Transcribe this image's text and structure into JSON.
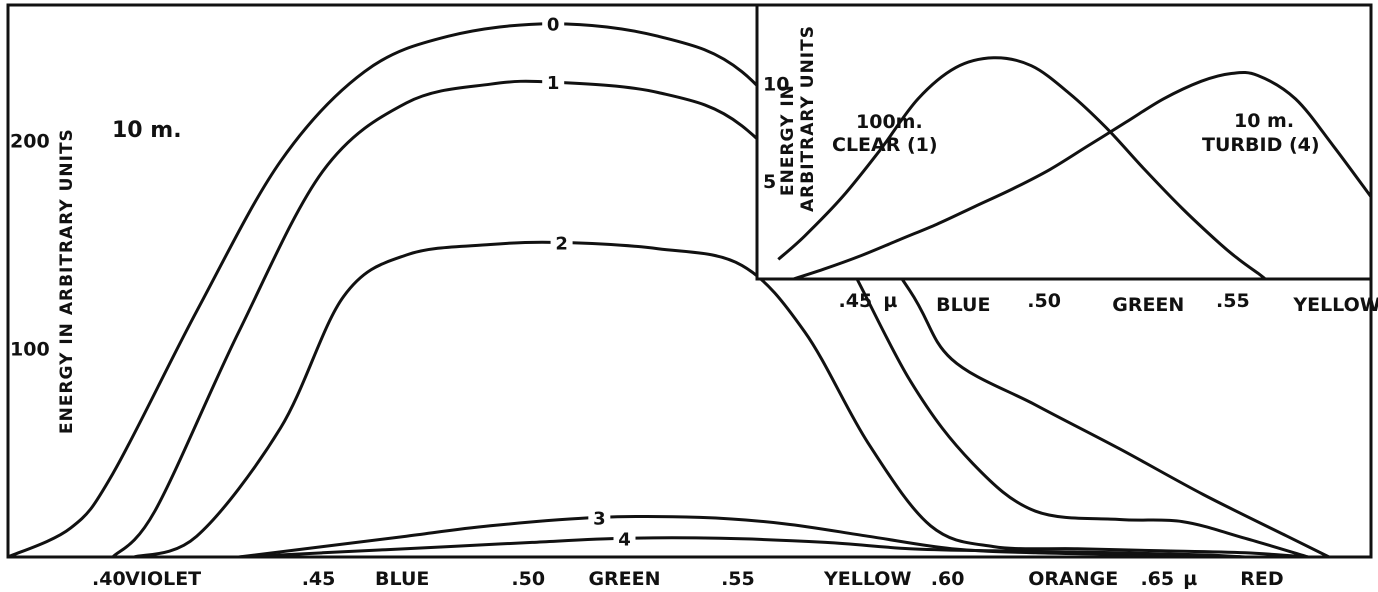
{
  "chart_data": [
    {
      "type": "line",
      "annotation": "10 m.",
      "ylabel": "ENERGY IN ARBITRARY UNITS",
      "xunit": "µ",
      "xlim": [
        0.375,
        0.7
      ],
      "ylim": [
        0,
        265
      ],
      "x_ticks": [
        {
          "value": 0.4,
          "label": ".40"
        },
        {
          "value": 0.45,
          "label": ".45"
        },
        {
          "value": 0.5,
          "label": ".50"
        },
        {
          "value": 0.55,
          "label": ".55"
        },
        {
          "value": 0.6,
          "label": ".60"
        },
        {
          "value": 0.65,
          "label": ".65"
        }
      ],
      "unit_tick": 0.65,
      "color_bands": [
        {
          "x": 0.412,
          "label": "VIOLET"
        },
        {
          "x": 0.469,
          "label": "BLUE"
        },
        {
          "x": 0.522,
          "label": "GREEN"
        },
        {
          "x": 0.58,
          "label": "YELLOW"
        },
        {
          "x": 0.629,
          "label": "ORANGE"
        },
        {
          "x": 0.674,
          "label": "RED"
        }
      ],
      "y_ticks": [
        {
          "value": 100,
          "label": "100"
        },
        {
          "value": 200,
          "label": "200"
        }
      ],
      "series": [
        {
          "name": "0",
          "label_x": 0.505,
          "points": [
            [
              0.375,
              0
            ],
            [
              0.39,
              14
            ],
            [
              0.4,
              40
            ],
            [
              0.42,
              118
            ],
            [
              0.44,
              190
            ],
            [
              0.46,
              233
            ],
            [
              0.48,
              250
            ],
            [
              0.505,
              256
            ],
            [
              0.53,
              250
            ],
            [
              0.55,
              233
            ],
            [
              0.57,
              185
            ],
            [
              0.59,
              128
            ],
            [
              0.6,
              95
            ],
            [
              0.62,
              73
            ],
            [
              0.64,
              52
            ],
            [
              0.66,
              30
            ],
            [
              0.68,
              10
            ],
            [
              0.69,
              0
            ]
          ]
        },
        {
          "name": "1",
          "label_x": 0.505,
          "points": [
            [
              0.4,
              0
            ],
            [
              0.41,
              22
            ],
            [
              0.43,
              108
            ],
            [
              0.45,
              185
            ],
            [
              0.47,
              218
            ],
            [
              0.49,
              227
            ],
            [
              0.505,
              228
            ],
            [
              0.53,
              223
            ],
            [
              0.55,
              207
            ],
            [
              0.57,
              160
            ],
            [
              0.59,
              85
            ],
            [
              0.605,
              45
            ],
            [
              0.62,
              22
            ],
            [
              0.64,
              18
            ],
            [
              0.655,
              17
            ],
            [
              0.67,
              9
            ],
            [
              0.685,
              0
            ]
          ]
        },
        {
          "name": "2",
          "label_x": 0.507,
          "points": [
            [
              0.405,
              0
            ],
            [
              0.42,
              10
            ],
            [
              0.44,
              62
            ],
            [
              0.455,
              125
            ],
            [
              0.47,
              145
            ],
            [
              0.49,
              150
            ],
            [
              0.507,
              151
            ],
            [
              0.53,
              148
            ],
            [
              0.55,
              140
            ],
            [
              0.565,
              108
            ],
            [
              0.58,
              55
            ],
            [
              0.595,
              15
            ],
            [
              0.61,
              5
            ],
            [
              0.63,
              4
            ],
            [
              0.65,
              3
            ],
            [
              0.67,
              2
            ],
            [
              0.685,
              0
            ]
          ]
        },
        {
          "name": "3",
          "label_x": 0.516,
          "points": [
            [
              0.43,
              0
            ],
            [
              0.45,
              5
            ],
            [
              0.47,
              10
            ],
            [
              0.49,
              15
            ],
            [
              0.516,
              19
            ],
            [
              0.54,
              19
            ],
            [
              0.56,
              16
            ],
            [
              0.58,
              10
            ],
            [
              0.6,
              4
            ],
            [
              0.62,
              2
            ],
            [
              0.65,
              1
            ],
            [
              0.67,
              0
            ]
          ]
        },
        {
          "name": "4",
          "label_x": 0.522,
          "points": [
            [
              0.43,
              0
            ],
            [
              0.45,
              2
            ],
            [
              0.48,
              5
            ],
            [
              0.5,
              7
            ],
            [
              0.522,
              9
            ],
            [
              0.545,
              9
            ],
            [
              0.57,
              7
            ],
            [
              0.59,
              4
            ],
            [
              0.61,
              3
            ],
            [
              0.64,
              2
            ],
            [
              0.66,
              1
            ],
            [
              0.67,
              0
            ]
          ]
        }
      ]
    },
    {
      "type": "line",
      "ylabel": "ENERGY IN ARBITRARY UNITS",
      "xunit": "µ",
      "xlim": [
        0.425,
        0.585
      ],
      "ylim": [
        0,
        14
      ],
      "x_ticks": [
        {
          "value": 0.45,
          "label": ".45"
        },
        {
          "value": 0.5,
          "label": ".50"
        },
        {
          "value": 0.55,
          "label": ".55"
        }
      ],
      "unit_tick": 0.45,
      "color_bands": [
        {
          "x": 0.477,
          "label": "BLUE"
        },
        {
          "x": 0.526,
          "label": "GREEN"
        },
        {
          "x": 0.576,
          "label": "YELLOW"
        }
      ],
      "y_ticks": [
        {
          "value": 5,
          "label": "5"
        },
        {
          "value": 10,
          "label": "10"
        }
      ],
      "series": [
        {
          "name": "100m. CLEAR (1)",
          "points": [
            [
              0.428,
              1.0
            ],
            [
              0.435,
              2.2
            ],
            [
              0.445,
              4.2
            ],
            [
              0.455,
              6.6
            ],
            [
              0.465,
              9.2
            ],
            [
              0.475,
              10.8
            ],
            [
              0.485,
              11.3
            ],
            [
              0.495,
              10.9
            ],
            [
              0.505,
              9.5
            ],
            [
              0.515,
              7.7
            ],
            [
              0.525,
              5.6
            ],
            [
              0.535,
              3.6
            ],
            [
              0.545,
              1.8
            ],
            [
              0.55,
              1.0
            ],
            [
              0.555,
              0.3
            ],
            [
              0.557,
              0
            ]
          ]
        },
        {
          "name": "10m. TURBID (4)",
          "points": [
            [
              0.432,
              0
            ],
            [
              0.44,
              0.5
            ],
            [
              0.45,
              1.2
            ],
            [
              0.46,
              2.0
            ],
            [
              0.47,
              2.8
            ],
            [
              0.48,
              3.7
            ],
            [
              0.49,
              4.6
            ],
            [
              0.5,
              5.6
            ],
            [
              0.51,
              6.8
            ],
            [
              0.52,
              8.0
            ],
            [
              0.53,
              9.2
            ],
            [
              0.54,
              10.1
            ],
            [
              0.548,
              10.5
            ],
            [
              0.555,
              10.4
            ],
            [
              0.565,
              9.2
            ],
            [
              0.575,
              6.8
            ],
            [
              0.585,
              4.2
            ]
          ]
        }
      ]
    }
  ],
  "labels": {
    "main_note": "10 m.",
    "main_ylabel": "ENERGY IN ARBITRARY UNITS",
    "inset_ylabel_line1": "ENERGY IN",
    "inset_ylabel_line2": "ARBITRARY UNITS",
    "inset_clear_line1": "100m.",
    "inset_clear_line2": "CLEAR (1)",
    "inset_turbid_line1": "10 m.",
    "inset_turbid_line2": "TURBID (4)"
  }
}
